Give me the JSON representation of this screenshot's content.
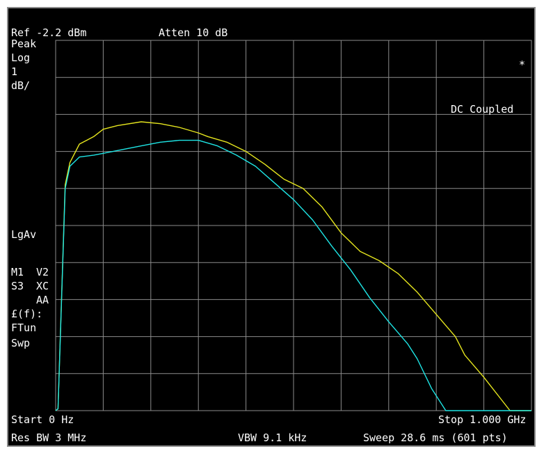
{
  "header": {
    "ref": "Ref -2.2 dBm",
    "atten": "Atten 10 dB"
  },
  "left_panel": {
    "detector": "Peak",
    "scale_type": "Log",
    "scale_value": "1",
    "scale_unit": "dB/",
    "avg": "LgAv",
    "m1": "M1",
    "v2": "V2",
    "s3": "S3",
    "xc": "XC",
    "aa": "AA",
    "ff": "£(f):",
    "ftun": "FTun",
    "swp": "Swp"
  },
  "right_panel": {
    "asterisk": "*",
    "coupling": "DC Coupled"
  },
  "footer": {
    "start": "Start 0 Hz",
    "stop": "Stop 1.000 GHz",
    "res_bw": "Res BW 3 MHz",
    "vbw": "VBW 9.1 kHz",
    "sweep": "Sweep 28.6 ms (601 pts)"
  },
  "colors": {
    "trace1": "#e6e61e",
    "trace2": "#1ee6e6",
    "grid": "#8c8c8c",
    "background": "#000000"
  },
  "chart_data": {
    "type": "line",
    "x_start_hz": 0,
    "x_stop_hz": 1000000000,
    "ref_level_dbm": -2.2,
    "scale_db_per_div": 1,
    "divisions": 10,
    "x_unit": "GHz",
    "y_unit": "dB below ref",
    "series": [
      {
        "color": "#e6e61e",
        "x": [
          0.0,
          0.005,
          0.02,
          0.03,
          0.05,
          0.08,
          0.1,
          0.13,
          0.18,
          0.22,
          0.26,
          0.3,
          0.32,
          0.36,
          0.4,
          0.44,
          0.48,
          0.52,
          0.56,
          0.6,
          0.64,
          0.68,
          0.72,
          0.76,
          0.8,
          0.84,
          0.86,
          0.9,
          0.955,
          1.0
        ],
        "y": [
          -10.0,
          -9.95,
          -3.9,
          -3.3,
          -2.8,
          -2.6,
          -2.4,
          -2.3,
          -2.2,
          -2.25,
          -2.35,
          -2.5,
          -2.6,
          -2.75,
          -3.0,
          -3.35,
          -3.75,
          -4.0,
          -4.5,
          -5.2,
          -5.7,
          -5.95,
          -6.3,
          -6.8,
          -7.4,
          -8.0,
          -8.5,
          -9.1,
          -10.0,
          -10.0
        ]
      },
      {
        "color": "#1ee6e6",
        "x": [
          0.0,
          0.005,
          0.02,
          0.03,
          0.05,
          0.08,
          0.1,
          0.14,
          0.18,
          0.22,
          0.26,
          0.3,
          0.34,
          0.38,
          0.42,
          0.46,
          0.5,
          0.54,
          0.58,
          0.62,
          0.66,
          0.7,
          0.74,
          0.76,
          0.79,
          0.82,
          0.84,
          0.87,
          1.0
        ],
        "y": [
          -10.0,
          -9.95,
          -4.0,
          -3.4,
          -3.15,
          -3.1,
          -3.05,
          -2.95,
          -2.85,
          -2.75,
          -2.7,
          -2.7,
          -2.85,
          -3.1,
          -3.4,
          -3.85,
          -4.3,
          -4.85,
          -5.55,
          -6.2,
          -6.95,
          -7.6,
          -8.2,
          -8.6,
          -9.4,
          -10.0,
          -10.0,
          -10.0,
          -10.0
        ]
      }
    ]
  }
}
